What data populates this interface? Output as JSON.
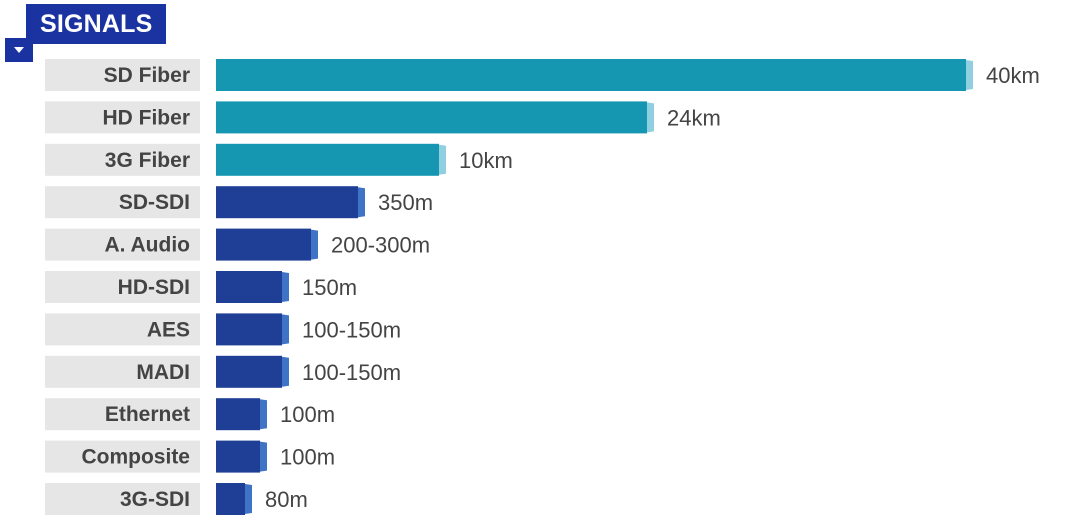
{
  "header": {
    "title": "SIGNALS",
    "toggle_icon": "caret-down-icon"
  },
  "colors": {
    "header_bg": "#1a33a0",
    "label_bg": "#e6e6e6",
    "label_text": "#444444",
    "fiber": "#1597b2",
    "fiber_cap": "#8fcfe0",
    "copper": "#1f3f96",
    "copper_cap": "#3f73c5",
    "value_text": "#444444"
  },
  "chart_data": {
    "type": "bar",
    "orientation": "horizontal",
    "categories": [
      "SD Fiber",
      "HD Fiber",
      "3G Fiber",
      "SD-SDI",
      "A. Audio",
      "HD-SDI",
      "AES",
      "MADI",
      "Ethernet",
      "Composite",
      "3G-SDI"
    ],
    "value_labels": [
      "40km",
      "24km",
      "10km",
      "350m",
      "200-300m",
      "150m",
      "100-150m",
      "100-150m",
      "100m",
      "100m",
      "80m"
    ],
    "groups": [
      "fiber",
      "fiber",
      "fiber",
      "copper",
      "copper",
      "copper",
      "copper",
      "copper",
      "copper",
      "copper",
      "copper"
    ],
    "relative_length": [
      1.0,
      0.575,
      0.297,
      0.189,
      0.127,
      0.088,
      0.088,
      0.088,
      0.059,
      0.059,
      0.038
    ]
  }
}
